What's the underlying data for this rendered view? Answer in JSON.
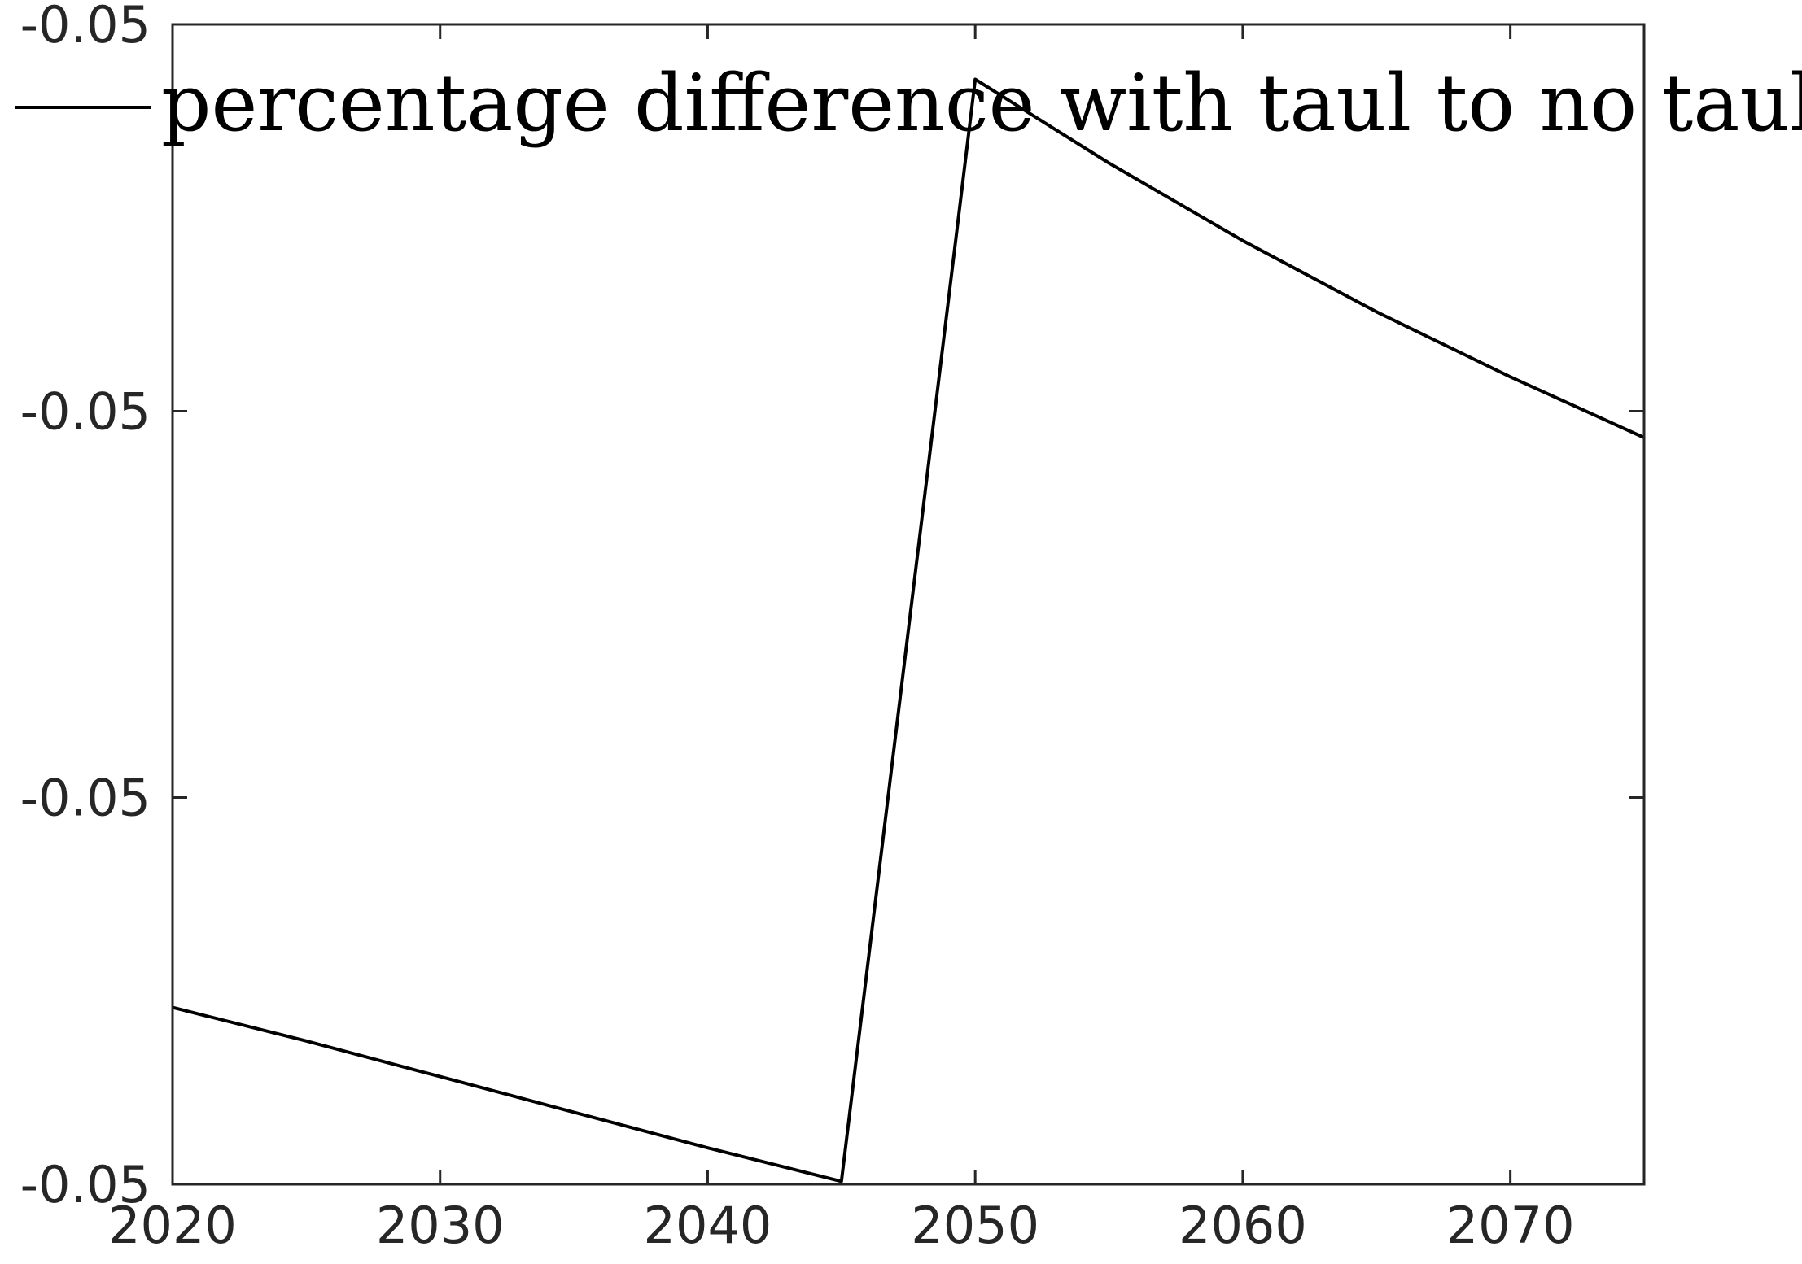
{
  "chart_data": {
    "type": "line",
    "x": [
      2020,
      2025,
      2030,
      2035,
      2040,
      2045,
      2050,
      2055,
      2060,
      2065,
      2070,
      2075
    ],
    "series": [
      {
        "name": "percentage difference with taul to no taul",
        "color": "#000000",
        "values": [
          -0.05166,
          -0.05174,
          -0.051825,
          -0.05191,
          -0.051995,
          -0.052075,
          -0.049445,
          -0.049645,
          -0.04983,
          -0.05,
          -0.050155,
          -0.0503
        ]
      }
    ],
    "xlim": [
      2020,
      2075
    ],
    "ylim": [
      -0.052082,
      -0.049314
    ],
    "xticks": [
      2020,
      2030,
      2040,
      2050,
      2060,
      2070
    ],
    "xtick_labels": [
      "2020",
      "2030",
      "2040",
      "2050",
      "2060",
      "2070"
    ],
    "yticks": [
      -0.052082,
      -0.051159,
      -0.050237,
      -0.049314
    ],
    "ytick_labels": [
      "-0.05",
      "-0.05",
      "-0.05",
      "-0.05"
    ],
    "legend": "top-right",
    "grid": false,
    "title": "",
    "xlabel": "",
    "ylabel": ""
  }
}
